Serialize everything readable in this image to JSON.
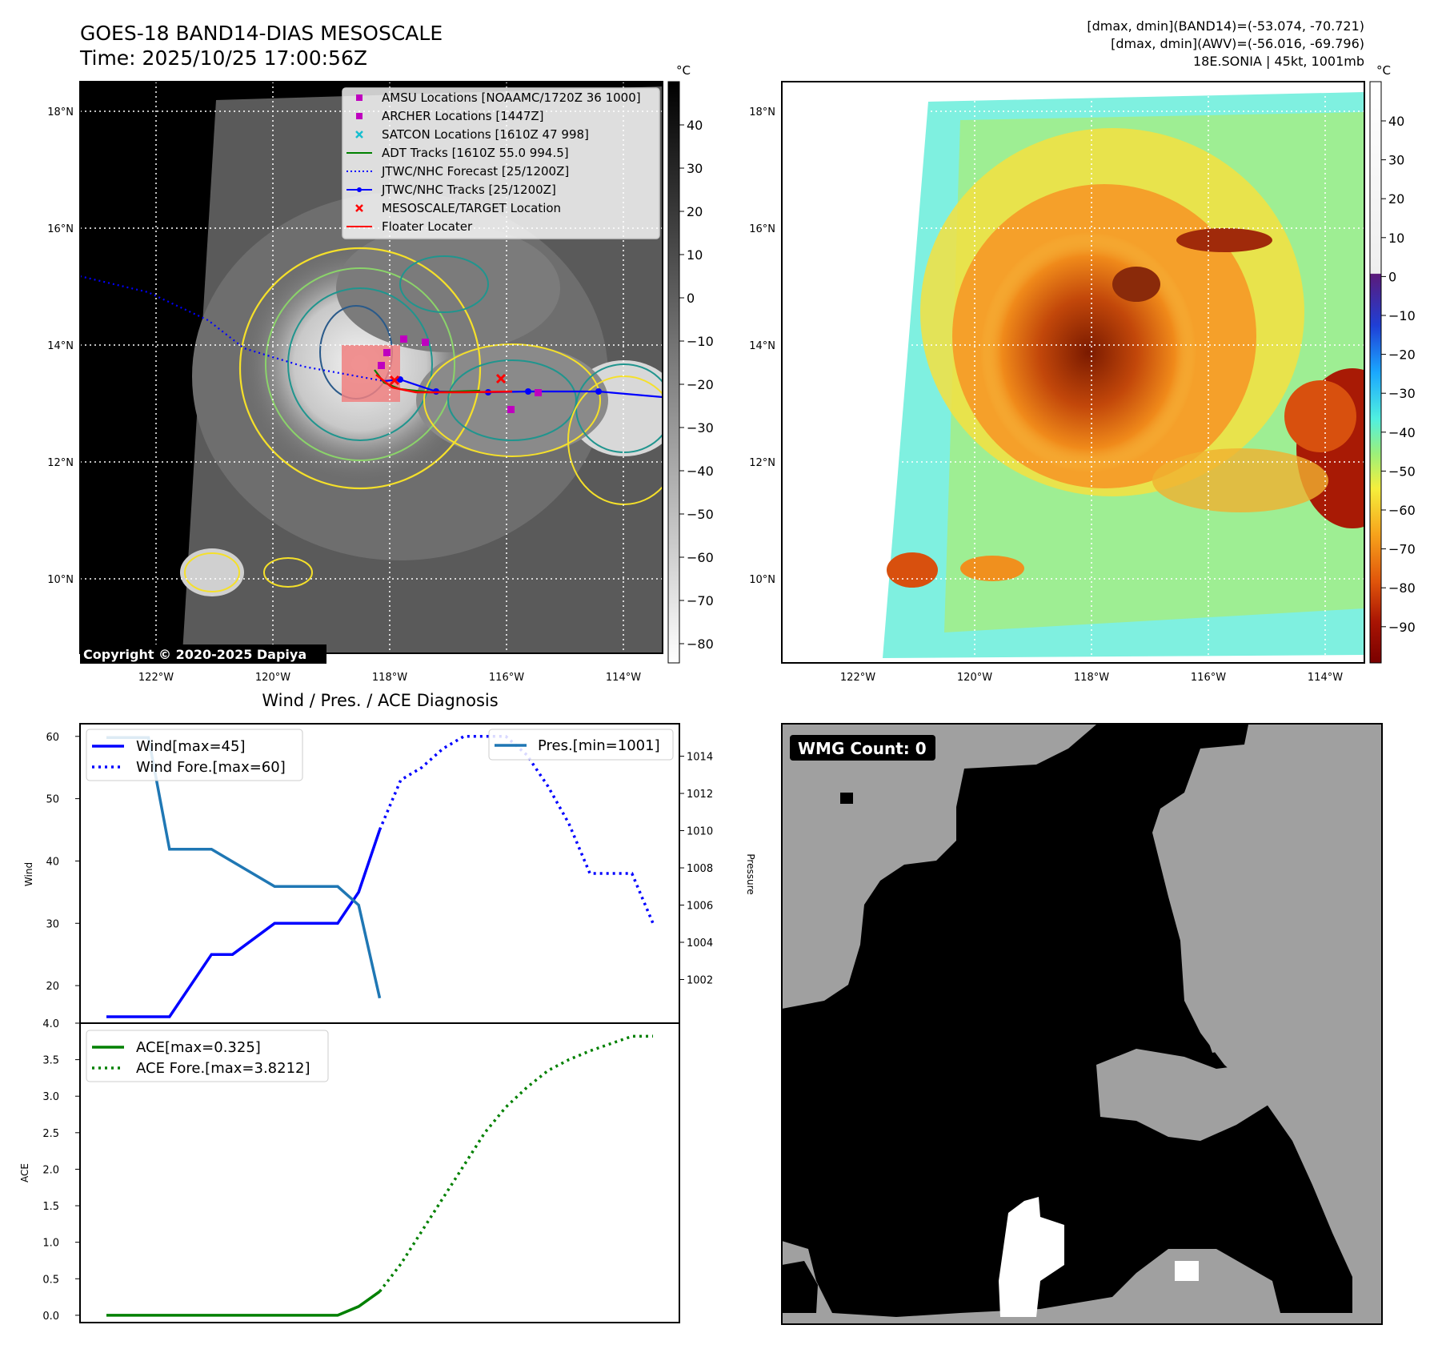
{
  "header": {
    "title": "GOES-18 BAND14-DIAS MESOSCALE",
    "time": "Time: 2025/10/25 17:00:56Z",
    "info_line1": "[dmax, dmin](BAND14)=(-53.074, -70.721)",
    "info_line2": "[dmax, dmin](AWV)=(-56.016, -69.796)",
    "info_line3": "18E.SONIA | 45kt, 1001mb"
  },
  "map_axes": {
    "lat_labels": [
      "18°N",
      "16°N",
      "14°N",
      "12°N",
      "10°N"
    ],
    "lat_values": [
      18,
      16,
      14,
      12,
      10
    ],
    "lon_labels": [
      "122°W",
      "120°W",
      "118°W",
      "116°W",
      "114°W"
    ],
    "lon_values": [
      -122,
      -120,
      -118,
      -116,
      -114
    ]
  },
  "ir_colorbar": {
    "unit": "°C",
    "ticks": [
      "40",
      "30",
      "20",
      "10",
      "0",
      "−10",
      "−20",
      "−30",
      "−40",
      "−50",
      "−60",
      "−70",
      "−80"
    ]
  },
  "awv_colorbar": {
    "unit": "°C",
    "ticks": [
      "40",
      "30",
      "20",
      "10",
      "0",
      "−10",
      "−20",
      "−30",
      "−40",
      "−50",
      "−60",
      "−70",
      "−80",
      "−90"
    ]
  },
  "map_legend": [
    {
      "label": "AMSU Locations [NOAAMC/1720Z 36 1000]",
      "marker": "square",
      "color": "#bf00bf"
    },
    {
      "label": "ARCHER Locations [1447Z]",
      "marker": "square",
      "color": "#bf00bf"
    },
    {
      "label": "SATCON Locations [1610Z 47 998]",
      "marker": "x",
      "color": "#17becf"
    },
    {
      "label": "ADT Tracks [1610Z 55.0 994.5]",
      "marker": "line",
      "color": "#008000"
    },
    {
      "label": "JTWC/NHC Forecast [25/1200Z]",
      "marker": "dotted",
      "color": "#0000ff"
    },
    {
      "label": "JTWC/NHC Tracks [25/1200Z]",
      "marker": "line-dot",
      "color": "#0000ff"
    },
    {
      "label": "MESOSCALE/TARGET Location",
      "marker": "x",
      "color": "#ff0000"
    },
    {
      "label": "Floater Locater",
      "marker": "line",
      "color": "#ff0000"
    }
  ],
  "copyright": "Copyright © 2020-2025 Dapiya",
  "wmg_label": "WMG Count: 0",
  "chart_data": [
    {
      "type": "line",
      "title": "Wind / Pres. / ACE Diagnosis",
      "ylabel": "Wind",
      "ylim": [
        15,
        61
      ],
      "yticks": [
        20,
        30,
        40,
        50,
        60
      ],
      "y2label": "Pressure",
      "y2lim": [
        1000.0,
        1015.4
      ],
      "y2ticks": [
        1002,
        1004,
        1006,
        1008,
        1010,
        1012,
        1014
      ],
      "x": [
        0,
        1,
        2,
        3,
        4,
        5,
        6,
        7,
        8,
        9,
        10,
        11,
        12,
        13,
        14,
        15,
        16,
        17,
        18,
        19,
        20,
        21,
        22,
        23,
        24,
        25,
        26
      ],
      "legend_left": [
        "Wind[max=45]",
        "Wind Fore.[max=60]"
      ],
      "legend_right": [
        "Pres.[min=1001]"
      ],
      "series": [
        {
          "name": "Wind[max=45]",
          "axis": "left",
          "style": "solid",
          "color": "#0000ff",
          "x": [
            0,
            3,
            5,
            6,
            8,
            11,
            12,
            13
          ],
          "values": [
            15,
            15,
            25,
            25,
            30,
            30,
            35,
            45
          ]
        },
        {
          "name": "Wind Fore.[max=60]",
          "axis": "left",
          "style": "dotted",
          "color": "#0000ff",
          "x": [
            13,
            14,
            15,
            16,
            17,
            18,
            19,
            20,
            21,
            22,
            23,
            24,
            25,
            26
          ],
          "values": [
            45,
            53,
            55,
            58,
            60,
            60,
            60,
            57,
            52,
            46,
            38,
            38,
            38,
            30
          ]
        },
        {
          "name": "Pres.[min=1001]",
          "axis": "right",
          "style": "solid",
          "color": "#1f77b4",
          "x": [
            0,
            2,
            3,
            5,
            8,
            11,
            12,
            13
          ],
          "values": [
            1015,
            1015,
            1009,
            1009,
            1007,
            1007,
            1006,
            1001
          ]
        }
      ]
    },
    {
      "type": "line",
      "ylabel": "ACE",
      "ylim": [
        -0.1,
        4.0
      ],
      "yticks": [
        "0.0",
        "0.5",
        "1.0",
        "1.5",
        "2.0",
        "2.5",
        "3.0",
        "3.5",
        "4.0"
      ],
      "legend": [
        "ACE[max=0.325]",
        "ACE Fore.[max=3.8212]"
      ],
      "series": [
        {
          "name": "ACE[max=0.325]",
          "style": "solid",
          "color": "#008000",
          "x": [
            0,
            11,
            12,
            13
          ],
          "values": [
            0.0,
            0.0,
            0.12,
            0.325
          ]
        },
        {
          "name": "ACE Fore.[max=3.8212]",
          "style": "dotted",
          "color": "#008000",
          "x": [
            13,
            14,
            15,
            16,
            17,
            18,
            19,
            20,
            21,
            22,
            23,
            24,
            25,
            26
          ],
          "values": [
            0.325,
            0.7,
            1.15,
            1.6,
            2.05,
            2.5,
            2.85,
            3.12,
            3.35,
            3.5,
            3.62,
            3.72,
            3.82,
            3.8212
          ]
        }
      ]
    }
  ]
}
